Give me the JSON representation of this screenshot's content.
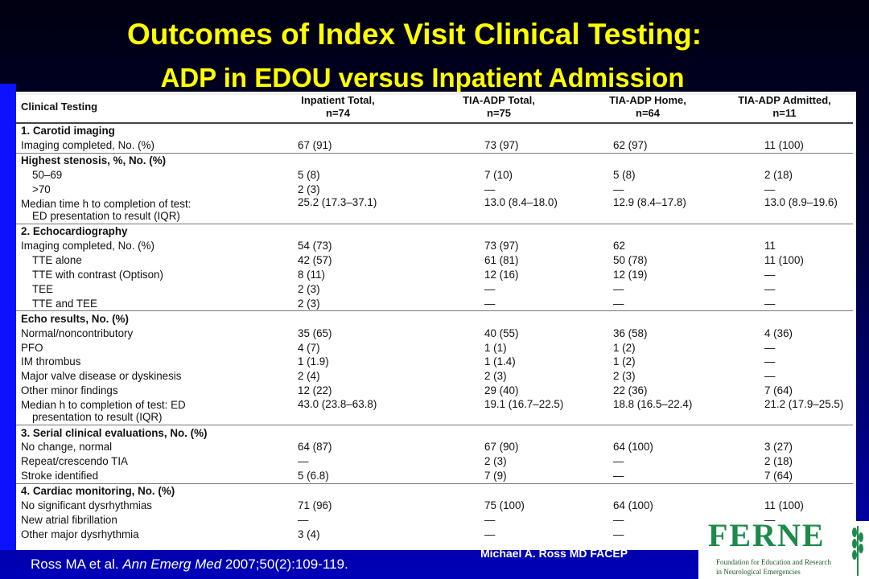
{
  "slide": {
    "title_line1": "Outcomes of Index Visit Clinical Testing:",
    "title_line2": "ADP in EDOU versus Inpatient Admission",
    "author": "Michael A. Ross MD FACEP",
    "citation_pre": "Ross MA et al. ",
    "citation_journal": "Ann Emerg Med",
    "citation_post": " 2007;50(2):109-119."
  },
  "logo": {
    "text": "FERNE",
    "sub1": "Foundation for Education and Research",
    "sub2": "in Neurological Emergencies"
  },
  "table": {
    "headers": [
      "Clinical Testing",
      "Inpatient Total,",
      "n=74",
      "TIA-ADP Total,",
      "n=75",
      "TIA-ADP Home,",
      "n=64",
      "TIA-ADP Admitted,",
      "n=11"
    ],
    "rows": [
      {
        "label": "1. Carotid imaging",
        "section": true,
        "v": [
          "",
          "",
          "",
          ""
        ]
      },
      {
        "label": "Imaging completed, No. (%)",
        "v": [
          "67 (91)",
          "73 (97)",
          "62 (97)",
          "11 (100)"
        ]
      },
      {
        "label": "Highest stenosis, %, No. (%)",
        "section": true,
        "v": [
          "",
          "",
          "",
          ""
        ]
      },
      {
        "label": "50–69",
        "indent": true,
        "v": [
          "5 (8)",
          "7 (10)",
          "5 (8)",
          "2 (18)"
        ]
      },
      {
        "label": ">70",
        "indent": true,
        "v": [
          "2 (3)",
          "—",
          "—",
          "—"
        ]
      },
      {
        "label": "Median time h to completion of test:",
        "label2": "ED presentation to result (IQR)",
        "v": [
          "25.2 (17.3–37.1)",
          "13.0 (8.4–18.0)",
          "12.9 (8.4–17.8)",
          "13.0 (8.9–19.6)"
        ]
      },
      {
        "label": "2. Echocardiography",
        "section": true,
        "v": [
          "",
          "",
          "",
          ""
        ]
      },
      {
        "label": "Imaging completed, No. (%)",
        "v": [
          "54 (73)",
          "73 (97)",
          "62",
          "11"
        ]
      },
      {
        "label": "TTE alone",
        "indent": true,
        "v": [
          "42 (57)",
          "61 (81)",
          "50 (78)",
          "11 (100)"
        ]
      },
      {
        "label": "TTE with contrast (Optison)",
        "indent": true,
        "v": [
          "8 (11)",
          "12 (16)",
          "12 (19)",
          "—"
        ]
      },
      {
        "label": "TEE",
        "indent": true,
        "v": [
          "2 (3)",
          "—",
          "—",
          "—"
        ]
      },
      {
        "label": "TTE and TEE",
        "indent": true,
        "v": [
          "2 (3)",
          "—",
          "—",
          "—"
        ]
      },
      {
        "label": "Echo results, No. (%)",
        "section": true,
        "v": [
          "",
          "",
          "",
          ""
        ]
      },
      {
        "label": "Normal/noncontributory",
        "v": [
          "35 (65)",
          "40 (55)",
          "36 (58)",
          "4 (36)"
        ]
      },
      {
        "label": "PFO",
        "v": [
          "4 (7)",
          "1 (1)",
          "1 (2)",
          "—"
        ]
      },
      {
        "label": "IM thrombus",
        "v": [
          "1 (1.9)",
          "1 (1.4)",
          "1 (2)",
          "—"
        ]
      },
      {
        "label": "Major valve disease or dyskinesis",
        "v": [
          "2 (4)",
          "2 (3)",
          "2 (3)",
          "—"
        ]
      },
      {
        "label": "Other minor findings",
        "v": [
          "12 (22)",
          "29 (40)",
          "22 (36)",
          "7 (64)"
        ]
      },
      {
        "label": "Median h to completion of test: ED",
        "label2": "presentation to result (IQR)",
        "v": [
          "43.0 (23.8–63.8)",
          "19.1 (16.7–22.5)",
          "18.8 (16.5–22.4)",
          "21.2 (17.9–25.5)"
        ]
      },
      {
        "label": "3. Serial clinical evaluations, No. (%)",
        "section": true,
        "v": [
          "",
          "",
          "",
          ""
        ]
      },
      {
        "label": "No change, normal",
        "v": [
          "64 (87)",
          "67 (90)",
          "64 (100)",
          "3 (27)"
        ]
      },
      {
        "label": "Repeat/crescendo TIA",
        "v": [
          "—",
          "2 (3)",
          "—",
          "2 (18)"
        ]
      },
      {
        "label": "Stroke identified",
        "v": [
          "5 (6.8)",
          "7 (9)",
          "—",
          "7 (64)"
        ]
      },
      {
        "label": "4. Cardiac monitoring, No. (%)",
        "section": true,
        "v": [
          "",
          "",
          "",
          ""
        ]
      },
      {
        "label": "No significant dysrhythmias",
        "v": [
          "71 (96)",
          "75 (100)",
          "64 (100)",
          "11 (100)"
        ]
      },
      {
        "label": "New atrial fibrillation",
        "v": [
          "—",
          "—",
          "—",
          "—"
        ]
      },
      {
        "label": "Other major dysrhythmia",
        "v": [
          "3 (4)",
          "—",
          "—",
          "—"
        ]
      }
    ]
  },
  "colors": {
    "title": "#ffff00",
    "background_top": "#000010",
    "background_bottom": "#0000b8",
    "table_bg": "#ffffff",
    "logo_green": "#1e8a4a"
  }
}
